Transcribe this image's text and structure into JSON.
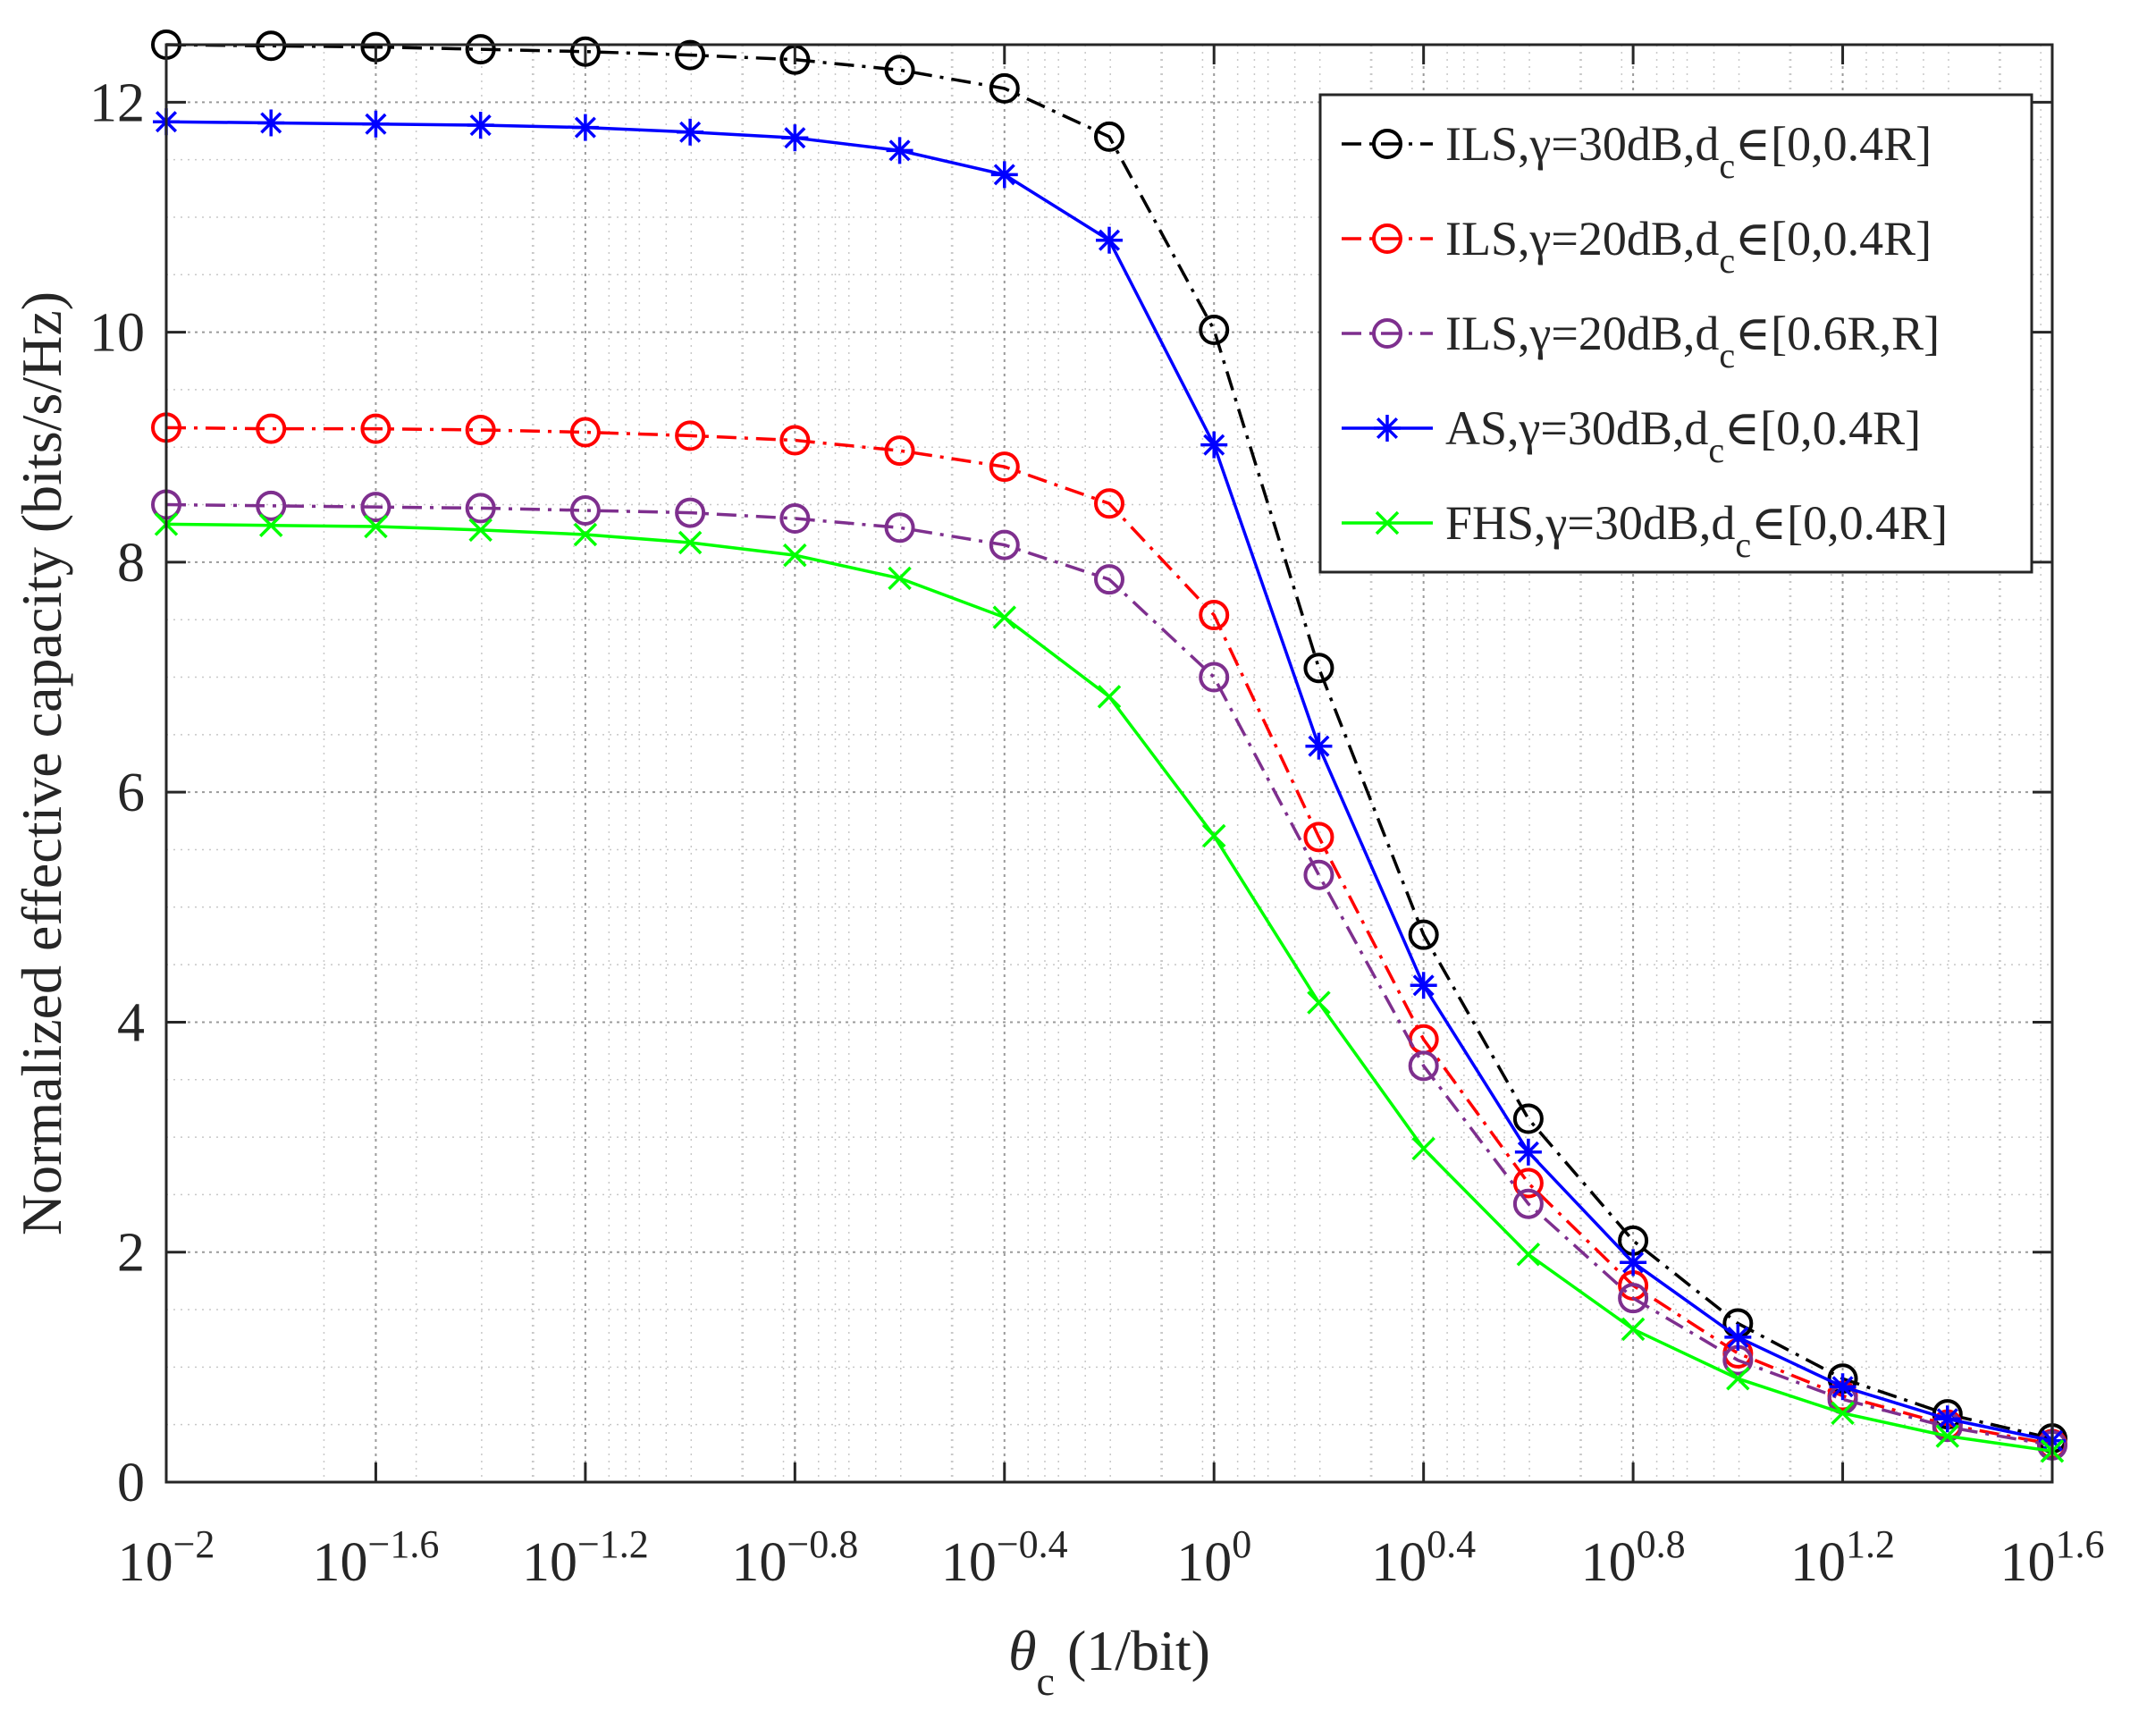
{
  "chart_data": {
    "type": "line",
    "title": "",
    "xlabel": {
      "symbol": "θ",
      "subscript": "c",
      "unit": "(1/bit)"
    },
    "ylabel": "Normalized effective capacity (bits/s/Hz)",
    "xscale": "log",
    "xlim_exponent": [
      -2,
      1.6
    ],
    "ylim": [
      0,
      12.5
    ],
    "grid": "major and minor, dotted",
    "legend_placement": "top-right",
    "x_ticks": [
      {
        "base": "10",
        "exp": "−2"
      },
      {
        "base": "10",
        "exp": "−1.6"
      },
      {
        "base": "10",
        "exp": "−1.2"
      },
      {
        "base": "10",
        "exp": "−0.8"
      },
      {
        "base": "10",
        "exp": "−0.4"
      },
      {
        "base": "10",
        "exp": "0"
      },
      {
        "base": "10",
        "exp": "0.4"
      },
      {
        "base": "10",
        "exp": "0.8"
      },
      {
        "base": "10",
        "exp": "1.2"
      },
      {
        "base": "10",
        "exp": "1.6"
      }
    ],
    "y_ticks": [
      "0",
      "2",
      "4",
      "6",
      "8",
      "10",
      "12"
    ],
    "x_exponents": [
      -2,
      -1.8,
      -1.6,
      -1.4,
      -1.2,
      -1.0,
      -0.8,
      -0.6,
      -0.4,
      -0.2,
      0,
      0.2,
      0.4,
      0.6,
      0.8,
      1.0,
      1.2,
      1.4,
      1.6
    ],
    "series": [
      {
        "name": "ILS,γ=30dB,d_c∈[0,0.4R]",
        "legend": {
          "main": "ILS,γ=30dB,d",
          "sub": "c",
          "rest": "∈[0,0.4R]"
        },
        "color": "#000000",
        "line": "dashdot",
        "marker": "circle",
        "values": [
          12.5,
          12.49,
          12.48,
          12.46,
          12.44,
          12.41,
          12.37,
          12.28,
          12.12,
          11.7,
          10.02,
          7.08,
          4.76,
          3.16,
          2.1,
          1.38,
          0.9,
          0.59,
          0.38
        ]
      },
      {
        "name": "ILS,γ=20dB,d_c∈[0,0.4R]",
        "legend": {
          "main": "ILS,γ=20dB,d",
          "sub": "c",
          "rest": "∈[0,0.4R]"
        },
        "color": "#ff0000",
        "line": "dashdot",
        "marker": "circle",
        "values": [
          9.17,
          9.16,
          9.16,
          9.15,
          9.13,
          9.1,
          9.06,
          8.97,
          8.83,
          8.51,
          7.54,
          5.61,
          3.85,
          2.6,
          1.71,
          1.12,
          0.75,
          0.5,
          0.33
        ]
      },
      {
        "name": "ILS,γ=20dB,d_c∈[0.6R,R]",
        "legend": {
          "main": "ILS,γ=20dB,d",
          "sub": "c",
          "rest": "∈[0.6R,R]"
        },
        "color": "#7e2f8e",
        "line": "dashdot",
        "marker": "circle",
        "values": [
          8.5,
          8.49,
          8.48,
          8.47,
          8.45,
          8.43,
          8.38,
          8.3,
          8.15,
          7.85,
          7.0,
          5.28,
          3.62,
          2.42,
          1.6,
          1.06,
          0.72,
          0.48,
          0.32
        ]
      },
      {
        "name": "AS,γ=30dB,d_c∈[0,0.4R]",
        "legend": {
          "main": "AS,γ=30dB,d",
          "sub": "c",
          "rest": "∈[0,0.4R]"
        },
        "color": "#0000ff",
        "line": "solid",
        "marker": "asterisk",
        "values": [
          11.83,
          11.82,
          11.81,
          11.8,
          11.78,
          11.74,
          11.69,
          11.58,
          11.37,
          10.8,
          9.02,
          6.4,
          4.32,
          2.87,
          1.91,
          1.26,
          0.83,
          0.55,
          0.36
        ]
      },
      {
        "name": "FHS,γ=30dB,d_c∈[0,0.4R]",
        "legend": {
          "main": "FHS,γ=30dB,d",
          "sub": "c",
          "rest": "∈[0,0.4R]"
        },
        "color": "#00ff00",
        "line": "solid",
        "marker": "x",
        "values": [
          8.33,
          8.32,
          8.31,
          8.28,
          8.24,
          8.17,
          8.06,
          7.86,
          7.52,
          6.83,
          5.62,
          4.17,
          2.9,
          1.98,
          1.33,
          0.9,
          0.6,
          0.4,
          0.27
        ]
      }
    ]
  }
}
